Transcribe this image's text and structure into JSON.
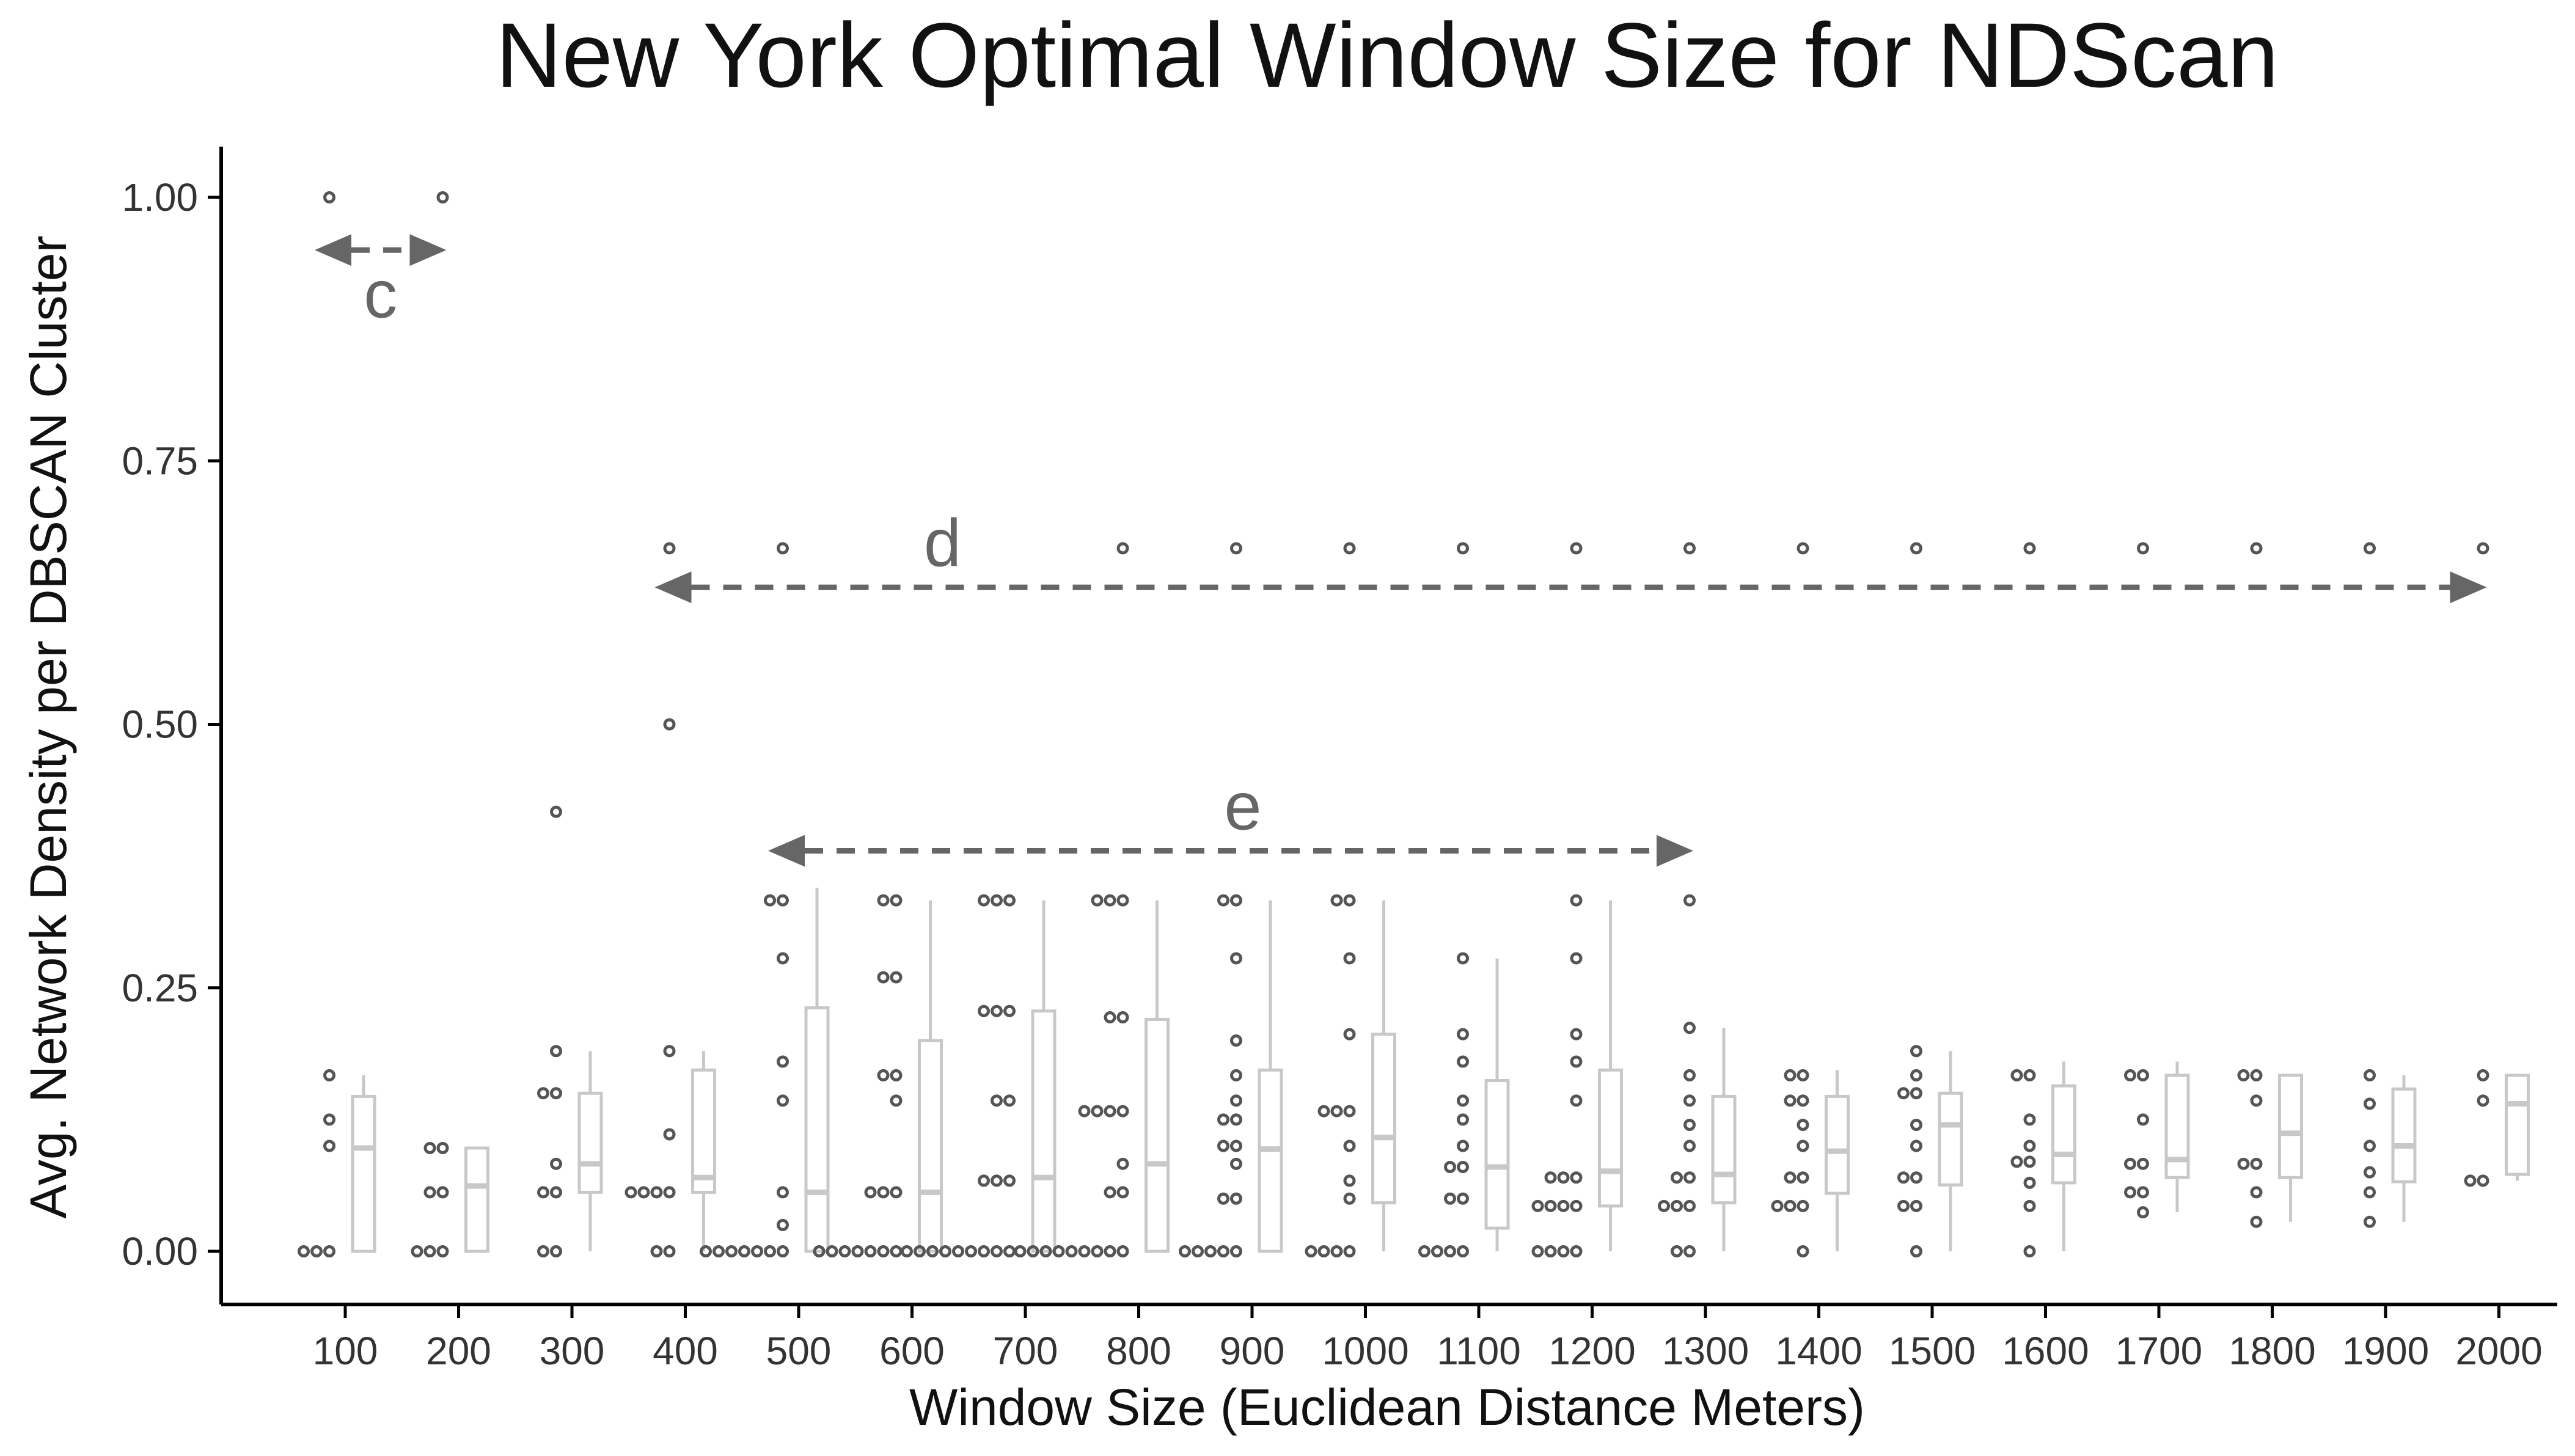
{
  "chart_data": {
    "type": "scatter",
    "title": "New York Optimal Window Size for NDScan",
    "xlabel": "Window Size (Euclidean Distance Meters)",
    "ylabel": "Avg. Network Density per DBSCAN Cluster",
    "x_ticks": [
      "100",
      "200",
      "300",
      "400",
      "500",
      "600",
      "700",
      "800",
      "900",
      "1000",
      "1100",
      "1200",
      "1300",
      "1400",
      "1500",
      "1600",
      "1700",
      "1800",
      "1900",
      "2000"
    ],
    "y_ticks": [
      "0.00",
      "0.25",
      "0.50",
      "0.75",
      "1.00"
    ],
    "ylim": [
      -0.05,
      1.05
    ],
    "grid": false,
    "legend": "none",
    "colors": {
      "points": "#555555",
      "box": "#c8c8c8",
      "annotation": "#666666",
      "text": "#222222",
      "axis": "#000000"
    },
    "groups": [
      {
        "x": 100,
        "points": [
          0,
          0,
          0,
          0.1,
          0.125,
          0.167,
          1.0
        ],
        "box": {
          "min": 0,
          "q1": 0,
          "median": 0.098,
          "q3": 0.147,
          "max": 0.167
        }
      },
      {
        "x": 200,
        "points": [
          0,
          0,
          0,
          0.056,
          0.067,
          0.098,
          0.098,
          1.0
        ],
        "box": {
          "min": 0,
          "q1": 0,
          "median": 0.062,
          "q3": 0.098,
          "max": 0.098
        }
      },
      {
        "x": 300,
        "points": [
          0,
          0,
          0.056,
          0.056,
          0.083,
          0.15,
          0.15,
          0.19,
          0.417
        ],
        "box": {
          "min": 0,
          "q1": 0.056,
          "median": 0.083,
          "q3": 0.15,
          "max": 0.19
        }
      },
      {
        "x": 400,
        "points": [
          0,
          0,
          0.056,
          0.056,
          0.07,
          0.07,
          0.111,
          0.19,
          0.5,
          0.667
        ],
        "box": {
          "min": 0,
          "q1": 0.056,
          "median": 0.07,
          "q3": 0.172,
          "max": 0.19
        }
      },
      {
        "x": 500,
        "points": [
          0,
          0,
          0,
          0,
          0,
          0,
          0.01,
          0.025,
          0.056,
          0.143,
          0.18,
          0.278,
          0.333,
          0.345,
          0.667
        ],
        "box": {
          "min": 0,
          "q1": 0,
          "median": 0.056,
          "q3": 0.231,
          "max": 0.345
        }
      },
      {
        "x": 600,
        "points": [
          0,
          0,
          0,
          0,
          0,
          0,
          0,
          0.056,
          0.056,
          0.056,
          0.143,
          0.167,
          0.18,
          0.26,
          0.26,
          0.333,
          0.333
        ],
        "box": {
          "min": 0,
          "q1": 0,
          "median": 0.056,
          "q3": 0.2,
          "max": 0.333
        }
      },
      {
        "x": 700,
        "points": [
          0,
          0,
          0,
          0,
          0,
          0,
          0,
          0,
          0,
          0.067,
          0.067,
          0.07,
          0.143,
          0.15,
          0.228,
          0.228,
          0.228,
          0.333,
          0.333,
          0.333
        ],
        "box": {
          "min": 0,
          "q1": 0,
          "median": 0.07,
          "q3": 0.228,
          "max": 0.333
        }
      },
      {
        "x": 800,
        "points": [
          0,
          0,
          0,
          0,
          0,
          0,
          0,
          0,
          0,
          0.056,
          0.056,
          0.083,
          0.133,
          0.133,
          0.133,
          0.143,
          0.222,
          0.233,
          0.333,
          0.333,
          0.333,
          0.667
        ],
        "box": {
          "min": 0,
          "q1": 0,
          "median": 0.083,
          "q3": 0.22,
          "max": 0.333
        }
      },
      {
        "x": 900,
        "points": [
          0,
          0,
          0,
          0,
          0,
          0.05,
          0.05,
          0.083,
          0.1,
          0.1,
          0.125,
          0.125,
          0.143,
          0.167,
          0.2,
          0.278,
          0.333,
          0.333,
          0.667
        ],
        "box": {
          "min": 0,
          "q1": 0,
          "median": 0.097,
          "q3": 0.172,
          "max": 0.333
        }
      },
      {
        "x": 1000,
        "points": [
          0,
          0,
          0,
          0,
          0.05,
          0.067,
          0.1,
          0.133,
          0.133,
          0.143,
          0.206,
          0.278,
          0.333,
          0.333,
          0.667
        ],
        "box": {
          "min": 0,
          "q1": 0.046,
          "median": 0.108,
          "q3": 0.206,
          "max": 0.333
        }
      },
      {
        "x": 1100,
        "points": [
          0,
          0,
          0,
          0,
          0.05,
          0.05,
          0.08,
          0.08,
          0.1,
          0.125,
          0.143,
          0.18,
          0.206,
          0.278,
          0.667
        ],
        "box": {
          "min": 0,
          "q1": 0.022,
          "median": 0.08,
          "q3": 0.162,
          "max": 0.278
        }
      },
      {
        "x": 1200,
        "points": [
          0,
          0,
          0,
          0,
          0.043,
          0.043,
          0.056,
          0.056,
          0.07,
          0.08,
          0.08,
          0.143,
          0.18,
          0.206,
          0.278,
          0.333,
          0.667
        ],
        "box": {
          "min": 0,
          "q1": 0.043,
          "median": 0.076,
          "q3": 0.172,
          "max": 0.333
        }
      },
      {
        "x": 1300,
        "points": [
          0,
          0,
          0.043,
          0.043,
          0.056,
          0.07,
          0.07,
          0.1,
          0.12,
          0.143,
          0.167,
          0.212,
          0.333,
          0.667
        ],
        "box": {
          "min": 0,
          "q1": 0.046,
          "median": 0.073,
          "q3": 0.147,
          "max": 0.212
        }
      },
      {
        "x": 1400,
        "points": [
          0,
          0.043,
          0.043,
          0.056,
          0.07,
          0.07,
          0.1,
          0.12,
          0.143,
          0.15,
          0.167,
          0.167,
          0.667
        ],
        "box": {
          "min": 0,
          "q1": 0.055,
          "median": 0.095,
          "q3": 0.147,
          "max": 0.172
        }
      },
      {
        "x": 1500,
        "points": [
          0,
          0.043,
          0.056,
          0.07,
          0.08,
          0.1,
          0.12,
          0.15,
          0.15,
          0.167,
          0.19,
          0.667
        ],
        "box": {
          "min": 0,
          "q1": 0.063,
          "median": 0.12,
          "q3": 0.15,
          "max": 0.19
        }
      },
      {
        "x": 1600,
        "points": [
          0,
          0.043,
          0.065,
          0.085,
          0.085,
          0.1,
          0.125,
          0.167,
          0.18,
          0.667
        ],
        "box": {
          "min": 0,
          "q1": 0.065,
          "median": 0.092,
          "q3": 0.157,
          "max": 0.18
        }
      },
      {
        "x": 1700,
        "points": [
          0.037,
          0.056,
          0.07,
          0.083,
          0.083,
          0.125,
          0.167,
          0.18,
          0.667
        ],
        "box": {
          "min": 0.037,
          "q1": 0.07,
          "median": 0.087,
          "q3": 0.167,
          "max": 0.18
        }
      },
      {
        "x": 1800,
        "points": [
          0.028,
          0.056,
          0.083,
          0.083,
          0.143,
          0.167,
          0.167,
          0.667
        ],
        "box": {
          "min": 0.028,
          "q1": 0.07,
          "median": 0.112,
          "q3": 0.167,
          "max": 0.167
        }
      },
      {
        "x": 1900,
        "points": [
          0.028,
          0.056,
          0.075,
          0.1,
          0.14,
          0.167,
          0.667
        ],
        "box": {
          "min": 0.028,
          "q1": 0.066,
          "median": 0.1,
          "q3": 0.154,
          "max": 0.167
        }
      },
      {
        "x": 2000,
        "points": [
          0.067,
          0.067,
          0.143,
          0.167,
          0.667
        ],
        "box": {
          "min": 0.067,
          "q1": 0.073,
          "median": 0.14,
          "q3": 0.167,
          "max": 0.167
        }
      }
    ],
    "annotations": [
      {
        "label": "c",
        "x_from": 100,
        "x_to": 200,
        "y": 0.95
      },
      {
        "label": "d",
        "x_from": 400,
        "x_to": 2000,
        "y": 0.63
      },
      {
        "label": "e",
        "x_from": 500,
        "x_to": 1300,
        "y": 0.38
      }
    ]
  }
}
